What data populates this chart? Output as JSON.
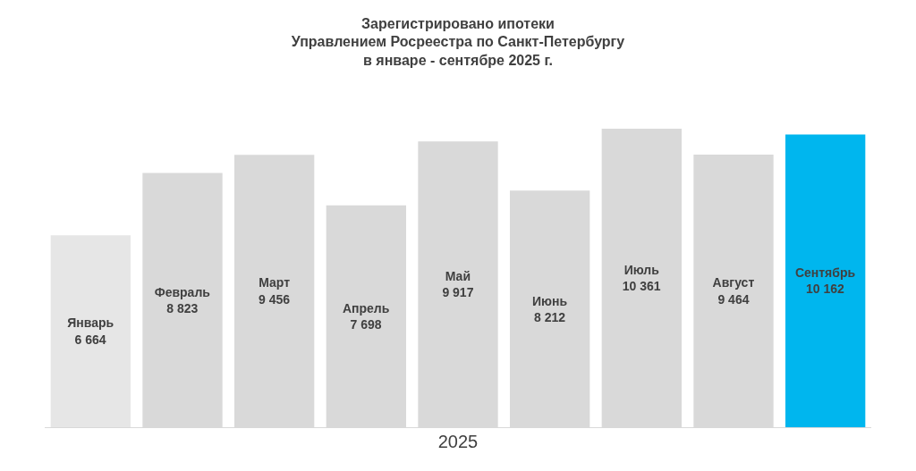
{
  "chart_data": {
    "type": "bar",
    "title": "Зарегистрировано ипотеки\nУправлением Росреестра по Санкт-Петербургу\nв январе - сентябре 2025 г.",
    "xlabel": "2025",
    "categories": [
      "Январь",
      "Февраль",
      "Март",
      "Апрель",
      "Май",
      "Июнь",
      "Июль",
      "Август",
      "Сентябрь"
    ],
    "values": [
      6664,
      8823,
      9456,
      7698,
      9917,
      8212,
      10361,
      9464,
      10162
    ],
    "value_labels": [
      "6 664",
      "8 823",
      "9 456",
      "7 698",
      "9 917",
      "8 212",
      "10 361",
      "9 464",
      "10 162"
    ],
    "colors": [
      "#e6e6e6",
      "#d9d9d9",
      "#d9d9d9",
      "#d9d9d9",
      "#d9d9d9",
      "#d9d9d9",
      "#d9d9d9",
      "#d9d9d9",
      "#00b6ee"
    ],
    "legend": false
  }
}
